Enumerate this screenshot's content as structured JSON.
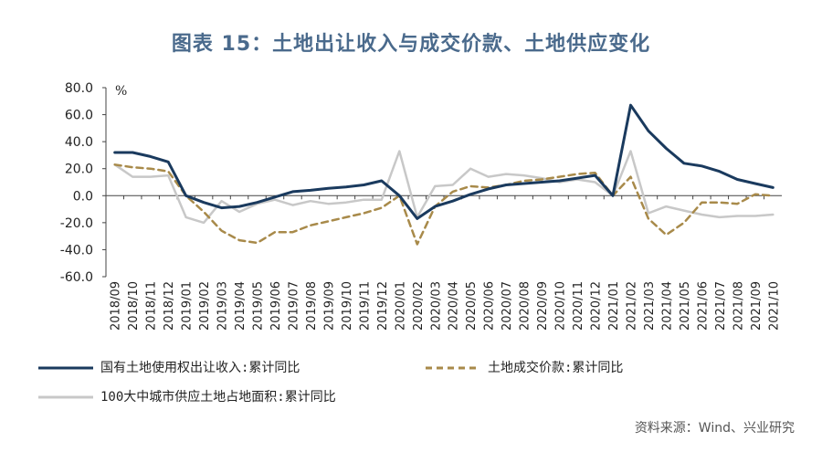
{
  "title": "图表 15：土地出让收入与成交价款、土地供应变化",
  "source": "资料来源：Wind、兴业研究",
  "chart_data": {
    "type": "line",
    "ylabel": "%",
    "ylim": [
      -60,
      80
    ],
    "yticks": [
      "80.0",
      "60.0",
      "40.0",
      "20.0",
      "0.0",
      "-20.0",
      "-40.0",
      "-60.0"
    ],
    "ytick_values": [
      80,
      60,
      40,
      20,
      0,
      -20,
      -40,
      -60
    ],
    "categories": [
      "2018/09",
      "2018/10",
      "2018/11",
      "2018/12",
      "2019/01",
      "2019/02",
      "2019/03",
      "2019/04",
      "2019/05",
      "2019/06",
      "2019/07",
      "2019/08",
      "2019/09",
      "2019/10",
      "2019/11",
      "2019/12",
      "2020/01",
      "2020/02",
      "2020/03",
      "2020/04",
      "2020/05",
      "2020/06",
      "2020/07",
      "2020/08",
      "2020/09",
      "2020/10",
      "2020/11",
      "2020/12",
      "2021/01",
      "2021/02",
      "2021/03",
      "2021/04",
      "2021/05",
      "2021/06",
      "2021/07",
      "2021/08",
      "2021/09",
      "2021/10"
    ],
    "series": [
      {
        "name": "国有土地使用权出让收入:累计同比",
        "color": "#1a3a5e",
        "style": "solid",
        "values": [
          32,
          32,
          29,
          25,
          0,
          -5,
          -9,
          -8,
          -5,
          -1,
          3,
          4,
          5.5,
          6.5,
          8,
          11,
          0,
          -17,
          -8,
          -4,
          1,
          5,
          8,
          9,
          10,
          11,
          13,
          15,
          0,
          67,
          48,
          35,
          24,
          22,
          18,
          12,
          9,
          6
        ]
      },
      {
        "name": "土地成交价款:累计同比",
        "color": "#a88a4a",
        "style": "dashed",
        "values": [
          23,
          21,
          20,
          18,
          0,
          -12,
          -26,
          -33,
          -35,
          -27,
          -27,
          -22,
          -19,
          -16,
          -13,
          -9,
          0,
          -36,
          -8,
          3,
          7,
          6,
          8,
          11,
          12,
          14,
          16,
          17,
          0,
          14,
          -17,
          -29,
          -20,
          -5,
          -5,
          -6,
          1,
          0
        ]
      },
      {
        "name": "100大中城市供应土地占地面积:累计同比",
        "color": "#c8c8c8",
        "style": "solid",
        "values": [
          23,
          14,
          14,
          15,
          -16,
          -20,
          -4,
          -12,
          -6,
          -3,
          -7,
          -4,
          -6,
          -5,
          -3,
          -3,
          33,
          -16,
          7,
          8,
          20,
          14,
          16,
          15,
          13,
          10,
          12,
          10,
          0,
          33,
          -13,
          -8,
          -11,
          -14,
          -16,
          -15,
          -15,
          -14
        ]
      }
    ]
  }
}
